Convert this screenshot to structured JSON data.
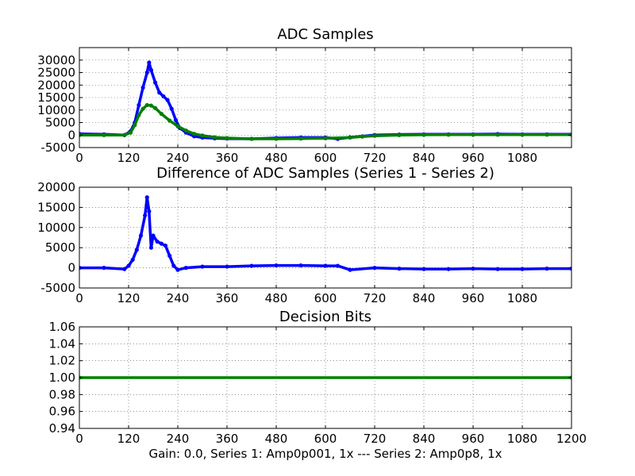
{
  "figure": {
    "xlabel": "Gain: 0.0, Series 1: Amp0p001, 1x --- Series 2: Amp0p8, 1x"
  },
  "chart_data": [
    {
      "type": "line",
      "title": "ADC Samples",
      "xlim": [
        0,
        1200
      ],
      "ylim": [
        -5000,
        35000
      ],
      "grid": true,
      "x_ticks": [
        0,
        120,
        240,
        360,
        480,
        600,
        720,
        840,
        960,
        1080
      ],
      "y_ticks": [
        -5000,
        0,
        5000,
        10000,
        15000,
        20000,
        25000,
        30000
      ],
      "series": [
        {
          "color": "#0000ff",
          "marker": "dot",
          "x": [
            0,
            60,
            110,
            125,
            135,
            145,
            155,
            165,
            170,
            175,
            185,
            195,
            205,
            215,
            225,
            235,
            245,
            260,
            280,
            300,
            330,
            360,
            420,
            480,
            540,
            600,
            630,
            660,
            690,
            720,
            780,
            840,
            900,
            960,
            1020,
            1080,
            1140,
            1200
          ],
          "y": [
            500,
            300,
            0,
            1500,
            5000,
            12000,
            19000,
            25000,
            29000,
            26000,
            21000,
            17000,
            15500,
            14000,
            10500,
            6000,
            2800,
            1000,
            -500,
            -1000,
            -1300,
            -1400,
            -1500,
            -1200,
            -1000,
            -1000,
            -1500,
            -900,
            -500,
            0,
            200,
            300,
            300,
            300,
            400,
            300,
            300,
            300
          ]
        },
        {
          "color": "#008000",
          "marker": "dot",
          "x": [
            0,
            60,
            110,
            125,
            135,
            145,
            155,
            165,
            175,
            185,
            200,
            220,
            240,
            260,
            280,
            300,
            330,
            360,
            420,
            480,
            540,
            600,
            660,
            690,
            720,
            780,
            840,
            900,
            960,
            1020,
            1080,
            1140,
            1200
          ],
          "y": [
            0,
            0,
            0,
            1000,
            4000,
            8000,
            10500,
            12000,
            11800,
            10800,
            8500,
            5800,
            3500,
            1800,
            500,
            -200,
            -900,
            -1200,
            -1500,
            -1500,
            -1400,
            -1300,
            -1000,
            -600,
            -300,
            0,
            100,
            150,
            150,
            150,
            150,
            150,
            150
          ]
        }
      ]
    },
    {
      "type": "line",
      "title": "Difference of ADC Samples (Series 1 - Series 2)",
      "xlim": [
        0,
        1200
      ],
      "ylim": [
        -5000,
        20000
      ],
      "grid": true,
      "x_ticks": [
        0,
        120,
        240,
        360,
        480,
        600,
        720,
        840,
        960,
        1080
      ],
      "y_ticks": [
        -5000,
        0,
        5000,
        10000,
        15000,
        20000
      ],
      "series": [
        {
          "color": "#0000ff",
          "marker": "dot",
          "x": [
            0,
            60,
            110,
            120,
            130,
            140,
            150,
            160,
            165,
            170,
            175,
            180,
            190,
            200,
            210,
            220,
            230,
            240,
            260,
            300,
            360,
            420,
            480,
            540,
            600,
            630,
            660,
            720,
            780,
            840,
            900,
            960,
            1020,
            1080,
            1140,
            1200
          ],
          "y": [
            0,
            0,
            -300,
            500,
            2000,
            4500,
            8000,
            13000,
            17500,
            14000,
            5000,
            8000,
            6500,
            6000,
            5500,
            3000,
            500,
            -500,
            0,
            300,
            300,
            500,
            600,
            600,
            500,
            500,
            -500,
            0,
            -200,
            -300,
            -300,
            -200,
            -300,
            -300,
            -200,
            -200
          ]
        }
      ]
    },
    {
      "type": "line",
      "title": "Decision Bits",
      "xlim": [
        0,
        1200
      ],
      "ylim": [
        0.94,
        1.06
      ],
      "grid": true,
      "x_ticks": [
        0,
        120,
        240,
        360,
        480,
        600,
        720,
        840,
        960,
        1080,
        1200
      ],
      "y_ticks": [
        0.94,
        0.96,
        0.98,
        1.0,
        1.02,
        1.04,
        1.06
      ],
      "y_tick_labels": [
        "0.94",
        "0.96",
        "0.98",
        "1.00",
        "1.02",
        "1.04",
        "1.06"
      ],
      "series": [
        {
          "color": "#008000",
          "marker": "dot",
          "x": [
            0,
            1200
          ],
          "y": [
            1.0,
            1.0
          ]
        }
      ]
    }
  ]
}
